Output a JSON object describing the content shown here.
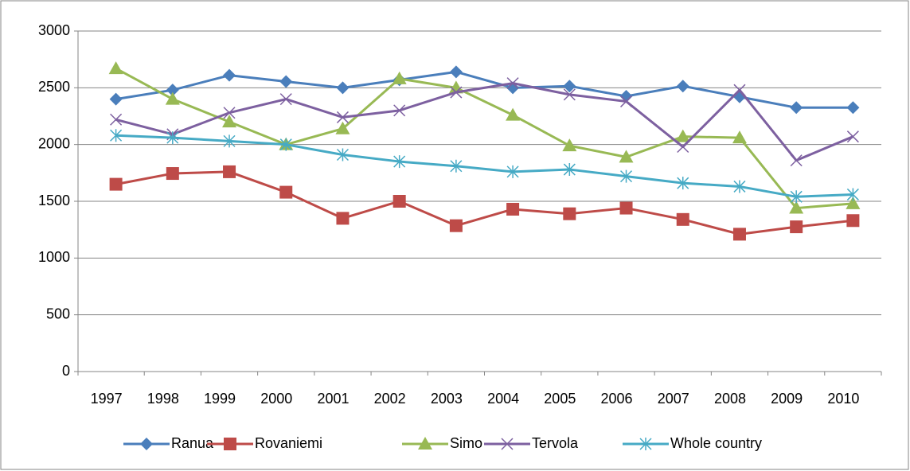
{
  "chart_data": {
    "type": "line",
    "categories": [
      "1997",
      "1998",
      "1999",
      "2000",
      "2001",
      "2002",
      "2003",
      "2004",
      "2005",
      "2006",
      "2007",
      "2008",
      "2009",
      "2010"
    ],
    "series": [
      {
        "name": "Ranua",
        "color": "#4a7ebb",
        "marker": "diamond",
        "values": [
          2400,
          2480,
          2610,
          2555,
          2500,
          2570,
          2640,
          2500,
          2515,
          2425,
          2515,
          2420,
          2325,
          2325
        ]
      },
      {
        "name": "Rovaniemi",
        "color": "#be4b48",
        "marker": "square",
        "values": [
          1650,
          1745,
          1760,
          1580,
          1350,
          1500,
          1285,
          1430,
          1390,
          1440,
          1340,
          1210,
          1275,
          1330
        ]
      },
      {
        "name": "Simo",
        "color": "#98b954",
        "marker": "triangle",
        "values": [
          2670,
          2400,
          2200,
          2000,
          2140,
          2580,
          2500,
          2260,
          1990,
          1890,
          2070,
          2060,
          1440,
          1480
        ]
      },
      {
        "name": "Tervola",
        "color": "#7d60a0",
        "marker": "x",
        "values": [
          2220,
          2090,
          2280,
          2400,
          2240,
          2300,
          2460,
          2540,
          2440,
          2380,
          1980,
          2480,
          1860,
          2070
        ]
      },
      {
        "name": "Whole country",
        "color": "#46aac5",
        "marker": "asterisk",
        "values": [
          2080,
          2060,
          2030,
          2000,
          1910,
          1850,
          1810,
          1760,
          1780,
          1720,
          1660,
          1630,
          1540,
          1560
        ]
      }
    ],
    "ylim": [
      0,
      3000
    ],
    "yticks": [
      0,
      500,
      1000,
      1500,
      2000,
      2500,
      3000
    ],
    "grid": true,
    "legend": "bottom"
  }
}
